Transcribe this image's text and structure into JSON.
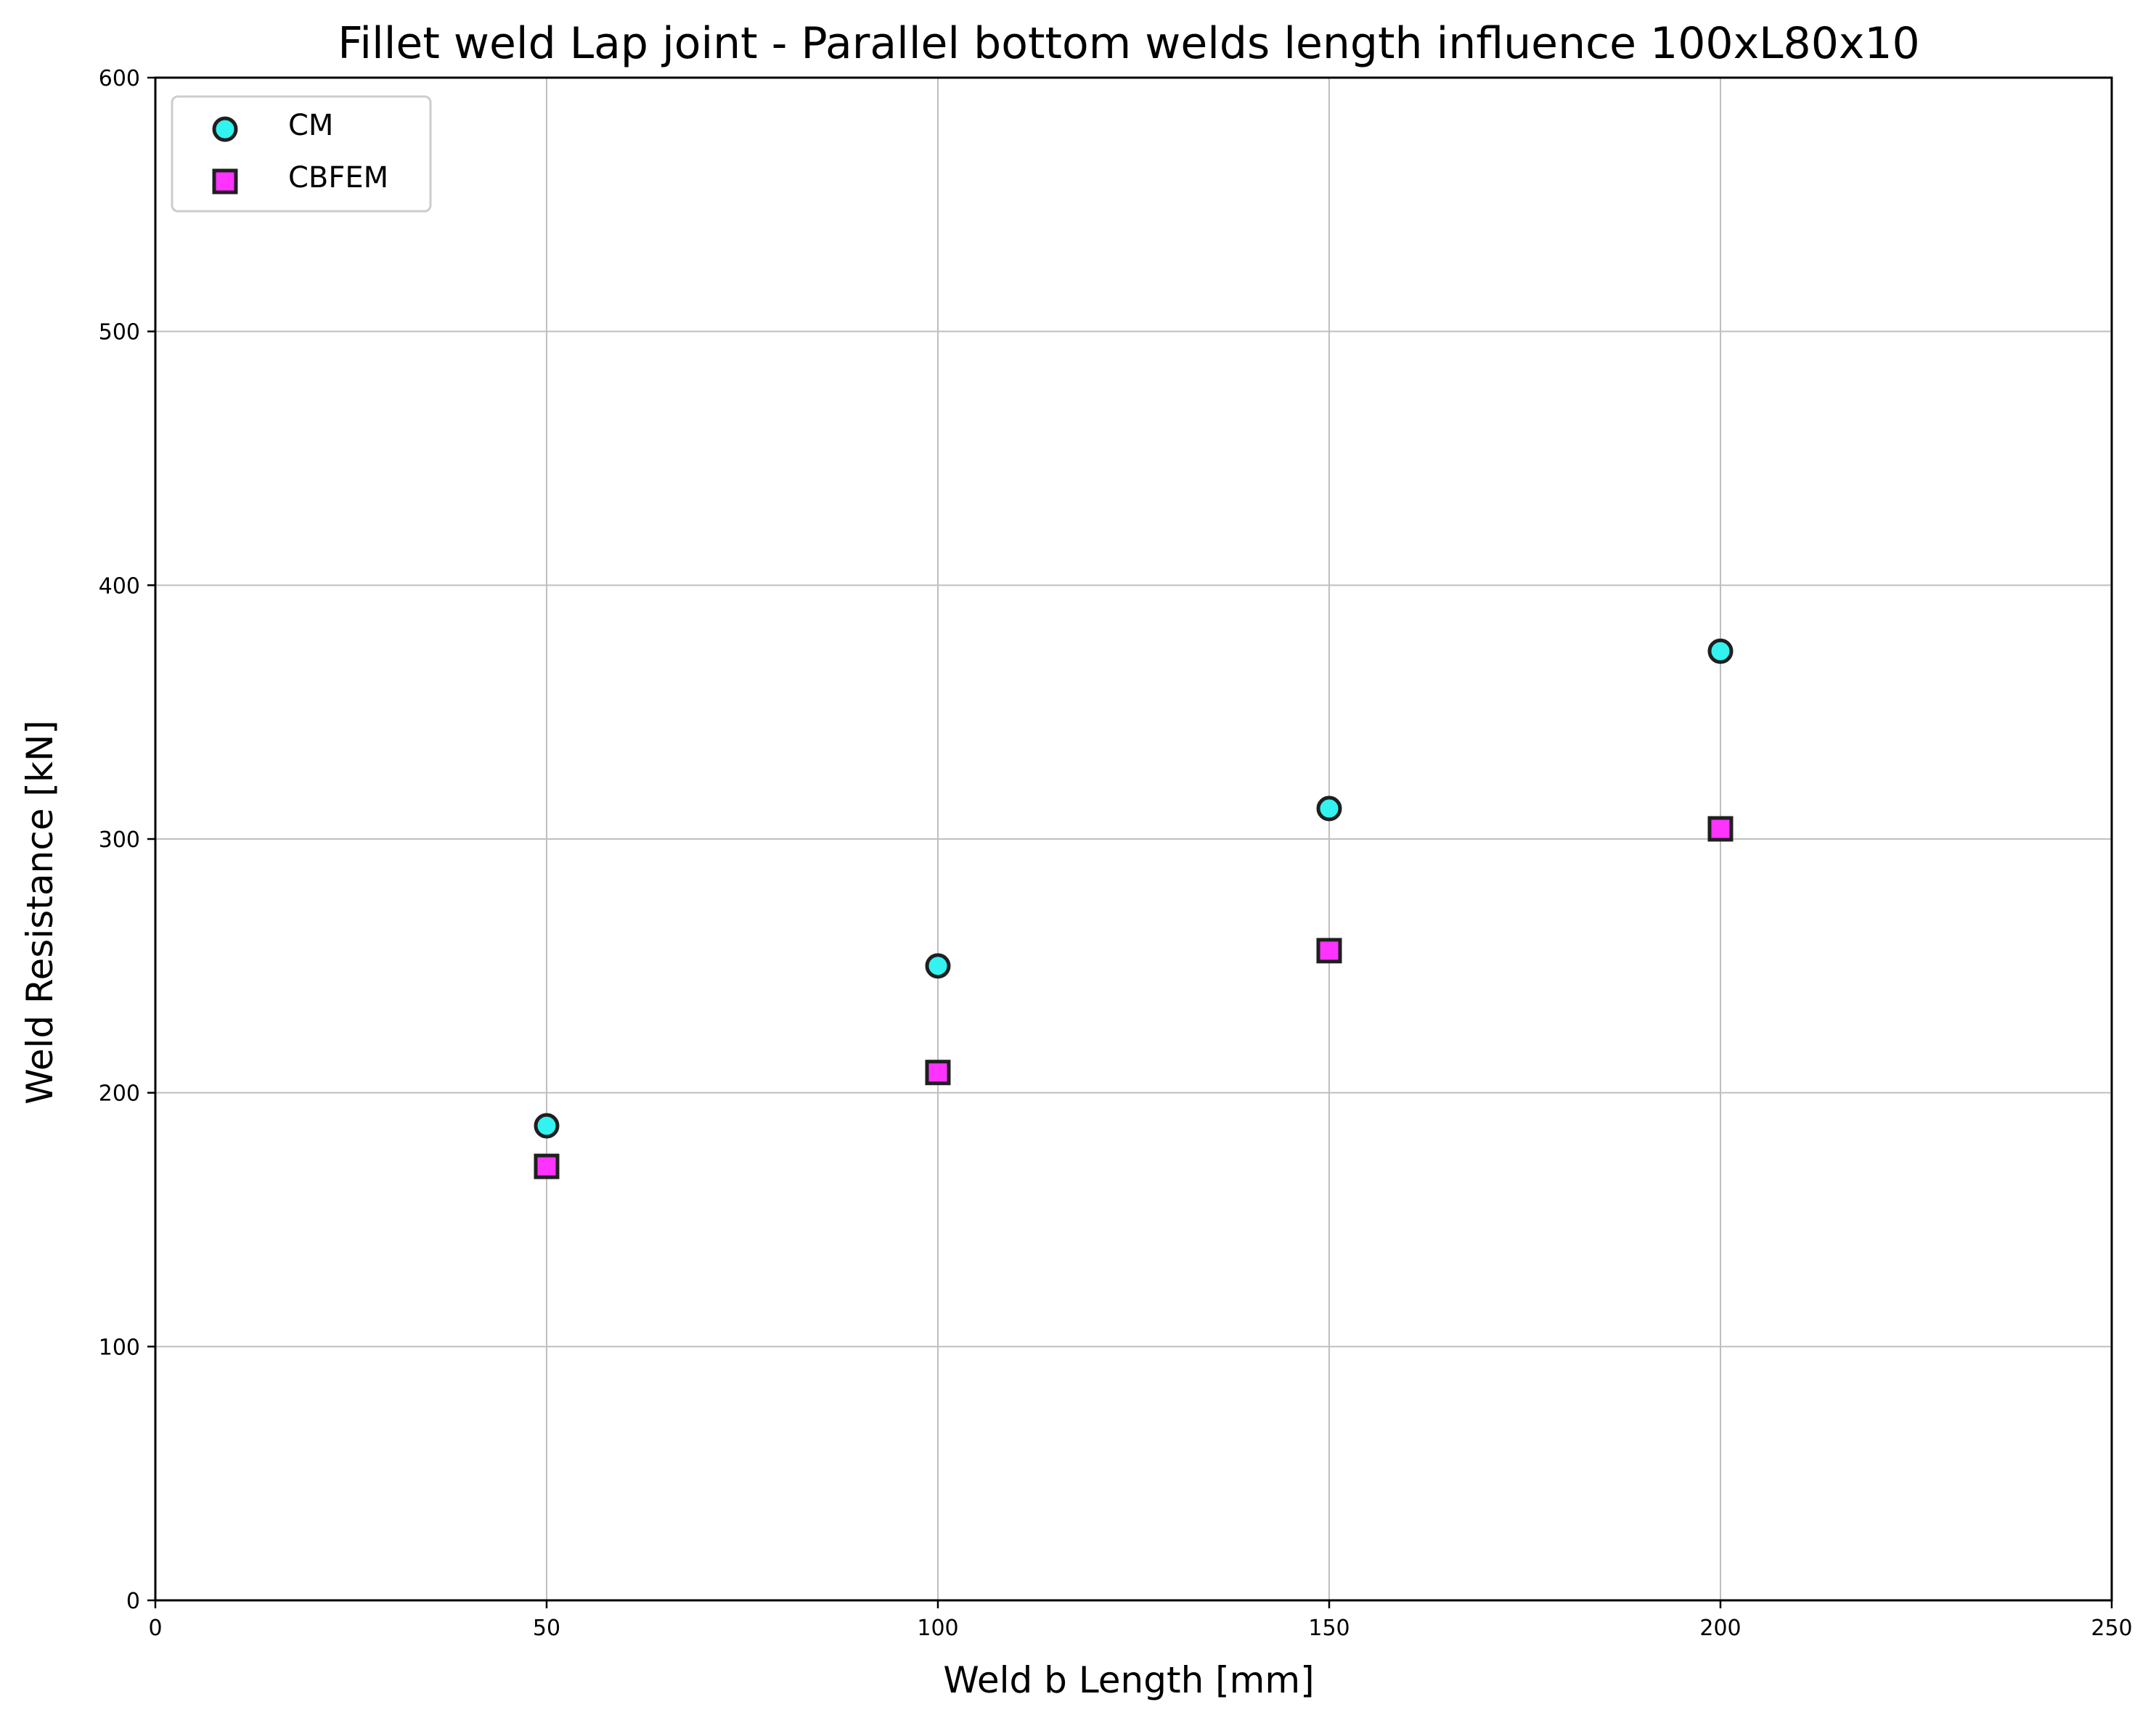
{
  "chart_data": {
    "type": "scatter",
    "title": "Fillet weld Lap joint - Parallel bottom welds length influence 100xL80x10",
    "xlabel": "Weld b Length [mm]",
    "ylabel": "Weld Resistance [kN]",
    "xlim": [
      0,
      250
    ],
    "ylim": [
      0,
      600
    ],
    "xticks": [
      0,
      50,
      100,
      150,
      200,
      250
    ],
    "yticks": [
      0,
      100,
      200,
      300,
      400,
      500,
      600
    ],
    "xtick_labels": [
      "0",
      "50",
      "100",
      "150",
      "200",
      "250"
    ],
    "ytick_labels": [
      "0",
      "100",
      "200",
      "300",
      "400",
      "500",
      "600"
    ],
    "grid": true,
    "legend_position": "top-left",
    "series": [
      {
        "name": "CM",
        "marker": "circle",
        "color": "#33f3f0",
        "edge_color": "#1f1f1f",
        "x": [
          50,
          100,
          150,
          200
        ],
        "y": [
          187,
          250,
          312,
          374
        ]
      },
      {
        "name": "CBFEM",
        "marker": "square",
        "color": "#ff33ff",
        "edge_color": "#1f1f1f",
        "x": [
          50,
          100,
          150,
          200
        ],
        "y": [
          171,
          208,
          256,
          304
        ]
      }
    ]
  }
}
